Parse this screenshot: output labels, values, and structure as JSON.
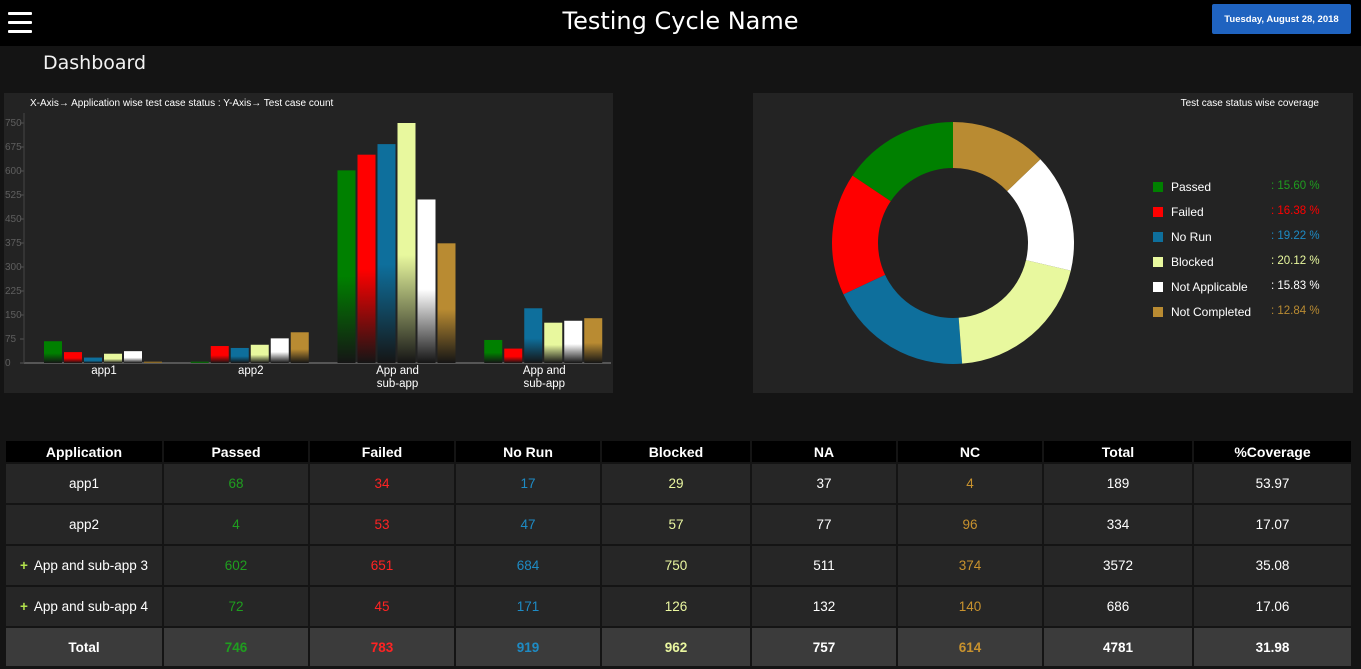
{
  "header": {
    "title": "Testing Cycle Name",
    "date": "Tuesday, August 28, 2018",
    "menu_icon": "hamburger-menu-icon"
  },
  "page": {
    "title": "Dashboard"
  },
  "colors": {
    "passed": "#008000",
    "failed": "#ff0000",
    "norun": "#0e6f9c",
    "blocked": "#e8f89e",
    "na": "#ffffff",
    "nc": "#b98b32"
  },
  "chart_data": [
    {
      "type": "bar",
      "title": "X-Axis→ Application wise test case status : Y-Axis→ Test case count",
      "categories": [
        "app1",
        "app2",
        "App and sub-app",
        "App and sub-app"
      ],
      "ylim": [
        0,
        750
      ],
      "yticks": [
        0,
        75,
        150,
        225,
        300,
        375,
        450,
        525,
        600,
        675,
        750
      ],
      "series": [
        {
          "name": "Passed",
          "values": [
            68,
            4,
            602,
            72
          ]
        },
        {
          "name": "Failed",
          "values": [
            34,
            53,
            651,
            45
          ]
        },
        {
          "name": "No Run",
          "values": [
            17,
            47,
            684,
            171
          ]
        },
        {
          "name": "Blocked",
          "values": [
            29,
            57,
            750,
            126
          ]
        },
        {
          "name": "Not Applicable",
          "values": [
            37,
            77,
            511,
            132
          ]
        },
        {
          "name": "Not Completed",
          "values": [
            4,
            96,
            374,
            140
          ]
        }
      ]
    },
    {
      "type": "pie",
      "title": "Test case status wise coverage",
      "legend": "right",
      "slices": [
        {
          "label": "Passed",
          "value": 15.6,
          "pct": ": 15.60 %"
        },
        {
          "label": "Failed",
          "value": 16.38,
          "pct": ": 16.38 %"
        },
        {
          "label": "No Run",
          "value": 19.22,
          "pct": ": 19.22 %"
        },
        {
          "label": "Blocked",
          "value": 20.12,
          "pct": ": 20.12 %"
        },
        {
          "label": "Not Applicable",
          "value": 15.83,
          "pct": ": 15.83 %"
        },
        {
          "label": "Not Completed",
          "value": 12.84,
          "pct": ": 12.84 %"
        }
      ]
    }
  ],
  "table": {
    "headers": [
      "Application",
      "Passed",
      "Failed",
      "No Run",
      "Blocked",
      "NA",
      "NC",
      "Total",
      "%Coverage"
    ],
    "rows": [
      {
        "expand": "",
        "app": "app1",
        "passed": "68",
        "failed": "34",
        "norun": "17",
        "blocked": "29",
        "na": "37",
        "nc": "4",
        "total": "189",
        "coverage": "53.97"
      },
      {
        "expand": "",
        "app": "app2",
        "passed": "4",
        "failed": "53",
        "norun": "47",
        "blocked": "57",
        "na": "77",
        "nc": "96",
        "total": "334",
        "coverage": "17.07"
      },
      {
        "expand": "+",
        "app": "App and sub-app 3",
        "passed": "602",
        "failed": "651",
        "norun": "684",
        "blocked": "750",
        "na": "511",
        "nc": "374",
        "total": "3572",
        "coverage": "35.08"
      },
      {
        "expand": "+",
        "app": "App and sub-app 4",
        "passed": "72",
        "failed": "45",
        "norun": "171",
        "blocked": "126",
        "na": "132",
        "nc": "140",
        "total": "686",
        "coverage": "17.06"
      }
    ],
    "total": {
      "app": "Total",
      "passed": "746",
      "failed": "783",
      "norun": "919",
      "blocked": "962",
      "na": "757",
      "nc": "614",
      "total": "4781",
      "coverage": "31.98"
    }
  }
}
